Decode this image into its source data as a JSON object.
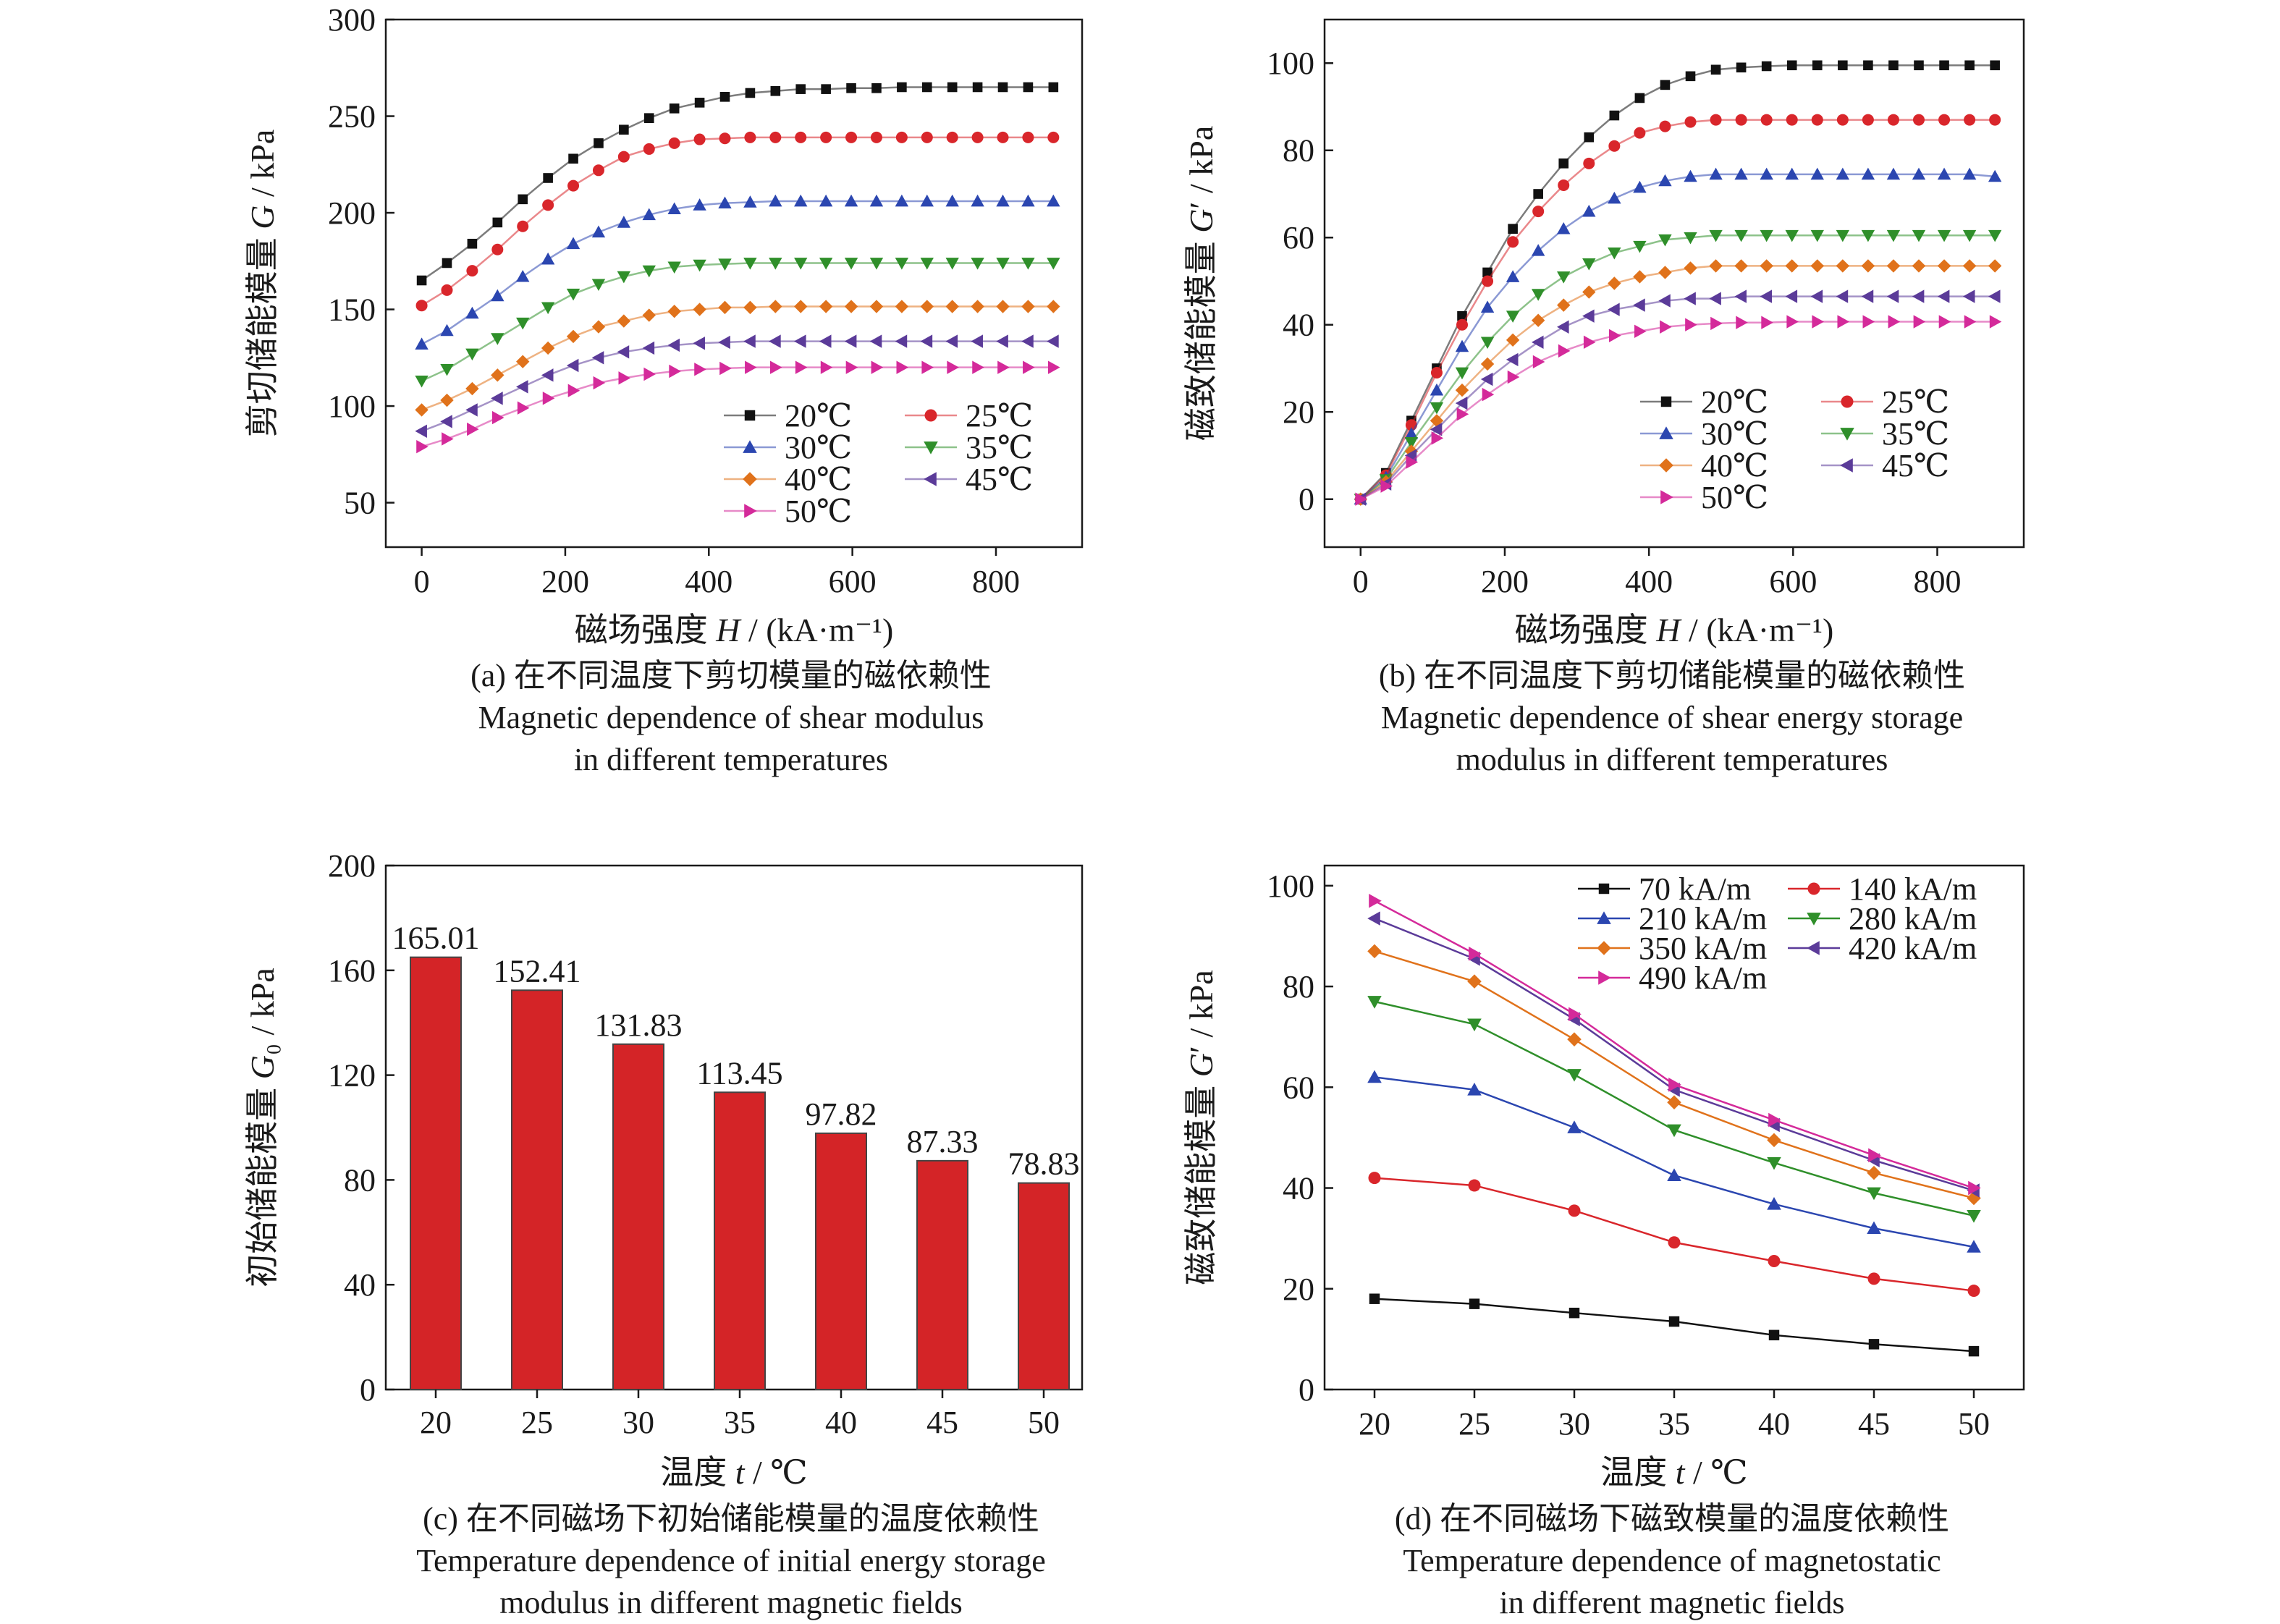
{
  "colors": {
    "20": "#111111",
    "25": "#d9262b",
    "30": "#2b46b0",
    "35": "#2f8f2a",
    "40": "#e0721b",
    "45": "#5b3b99",
    "50": "#d42a9a",
    "bar": "#d42427",
    "axis": "#1a1a1a"
  },
  "chart_data": [
    {
      "id": "a",
      "type": "line",
      "xlabel": "磁场强度 H / (kA·m⁻¹)",
      "ylabel": "剪切储能模量 G / kPa",
      "xlim": [
        -50,
        920
      ],
      "ylim": [
        27,
        300
      ],
      "xticks": [
        0,
        200,
        400,
        600,
        800
      ],
      "yticks": [
        50,
        100,
        150,
        200,
        250,
        300
      ],
      "legend_position": "lower-right",
      "legend_columns": 2,
      "x": [
        0,
        35.2,
        70.4,
        105.6,
        140.8,
        176,
        211.2,
        246.4,
        281.6,
        316.8,
        352,
        387.2,
        422.4,
        457.6,
        492.8,
        528,
        563.2,
        598.4,
        633.6,
        668.8,
        704,
        739.2,
        774.4,
        809.6,
        844.8,
        880
      ],
      "series": [
        {
          "name": "20℃",
          "marker": "square",
          "color_key": "20",
          "values": [
            165,
            174,
            184,
            195,
            207,
            218,
            228,
            236,
            243,
            249,
            254,
            257,
            260,
            262,
            263,
            264,
            264,
            264.5,
            264.5,
            265,
            265,
            265,
            265,
            265,
            265,
            265
          ]
        },
        {
          "name": "25℃",
          "marker": "circle",
          "color_key": "25",
          "values": [
            152,
            160,
            170,
            181,
            193,
            204,
            214,
            222,
            229,
            233,
            236,
            238,
            238.5,
            239,
            239,
            239,
            239,
            239,
            239,
            239,
            239,
            239,
            239,
            239,
            239,
            239
          ]
        },
        {
          "name": "30℃",
          "marker": "triangle-up",
          "color_key": "30",
          "values": [
            132,
            139,
            148,
            157,
            167,
            176,
            184,
            190,
            195,
            199,
            202,
            204,
            205,
            205.5,
            206,
            206,
            206,
            206,
            206,
            206,
            206,
            206,
            206,
            206,
            206,
            206
          ]
        },
        {
          "name": "35℃",
          "marker": "triangle-down",
          "color_key": "35",
          "values": [
            113,
            119,
            127,
            135,
            143,
            151,
            158,
            163,
            167,
            170,
            172,
            173,
            173.5,
            174,
            174,
            174,
            174,
            174,
            174,
            174,
            174,
            174,
            174,
            174,
            174,
            174
          ]
        },
        {
          "name": "40℃",
          "marker": "diamond",
          "color_key": "40",
          "values": [
            98,
            103,
            109,
            116,
            123,
            130,
            136,
            141,
            144,
            147,
            149,
            150,
            151,
            151,
            151.5,
            151.5,
            151.5,
            151.5,
            151.5,
            151.5,
            151.5,
            151.5,
            151.5,
            151.5,
            151.5,
            151.5
          ]
        },
        {
          "name": "45℃",
          "marker": "triangle-left",
          "color_key": "45",
          "values": [
            87,
            92,
            98,
            104,
            110,
            116,
            121,
            125,
            128,
            130,
            131.5,
            132.5,
            133,
            133.5,
            133.5,
            133.5,
            133.5,
            133.5,
            133.5,
            133.5,
            133.5,
            133.5,
            133.5,
            133.5,
            133.5,
            133.5
          ]
        },
        {
          "name": "50℃",
          "marker": "triangle-right",
          "color_key": "50",
          "values": [
            79,
            83,
            88,
            94,
            99,
            104,
            108,
            112,
            114.5,
            116.5,
            118,
            119,
            119.5,
            120,
            120,
            120,
            120,
            120,
            120,
            120,
            120,
            120,
            120,
            120,
            120,
            120
          ]
        }
      ]
    },
    {
      "id": "b",
      "type": "line",
      "xlabel": "磁场强度 H / (kA·m⁻¹)",
      "ylabel": "磁致储能模量 G′ / kPa",
      "xlim": [
        -50,
        920
      ],
      "ylim": [
        -11,
        110
      ],
      "xticks": [
        0,
        200,
        400,
        600,
        800
      ],
      "yticks": [
        0,
        20,
        40,
        60,
        80,
        100
      ],
      "legend_position": "lower-right",
      "legend_columns": 2,
      "x": [
        0,
        35.2,
        70.4,
        105.6,
        140.8,
        176,
        211.2,
        246.4,
        281.6,
        316.8,
        352,
        387.2,
        422.4,
        457.6,
        492.8,
        528,
        563.2,
        598.4,
        633.6,
        668.8,
        704,
        739.2,
        774.4,
        809.6,
        844.8,
        880
      ],
      "series": [
        {
          "name": "20℃",
          "marker": "square",
          "color_key": "20",
          "values": [
            0,
            6,
            18,
            30,
            42,
            52,
            62,
            70,
            77,
            83,
            88,
            92,
            95,
            97,
            98.5,
            99,
            99.3,
            99.5,
            99.5,
            99.5,
            99.5,
            99.5,
            99.5,
            99.5,
            99.5,
            99.5
          ]
        },
        {
          "name": "25℃",
          "marker": "circle",
          "color_key": "25",
          "values": [
            0,
            5.5,
            17,
            29,
            40,
            50,
            59,
            66,
            72,
            77,
            81,
            84,
            85.5,
            86.5,
            87,
            87,
            87,
            87,
            87,
            87,
            87,
            87,
            87,
            87,
            87,
            87
          ]
        },
        {
          "name": "30℃",
          "marker": "triangle-up",
          "color_key": "30",
          "values": [
            0,
            5,
            15,
            25,
            35,
            44,
            51,
            57,
            62,
            66,
            69,
            71.5,
            73,
            74,
            74.5,
            74.5,
            74.5,
            74.5,
            74.5,
            74.5,
            74.5,
            74.5,
            74.5,
            74.5,
            74.5,
            74
          ]
        },
        {
          "name": "35℃",
          "marker": "triangle-down",
          "color_key": "35",
          "values": [
            0,
            4.5,
            13,
            21,
            29,
            36,
            42,
            47,
            51,
            54,
            56.5,
            58,
            59.5,
            60,
            60.5,
            60.5,
            60.5,
            60.5,
            60.5,
            60.5,
            60.5,
            60.5,
            60.5,
            60.5,
            60.5,
            60.5
          ]
        },
        {
          "name": "40℃",
          "marker": "diamond",
          "color_key": "40",
          "values": [
            0,
            4,
            11,
            18,
            25,
            31,
            36.5,
            41,
            44.5,
            47.5,
            49.5,
            51,
            52,
            53,
            53.5,
            53.5,
            53.5,
            53.5,
            53.5,
            53.5,
            53.5,
            53.5,
            53.5,
            53.5,
            53.5,
            53.5
          ]
        },
        {
          "name": "45℃",
          "marker": "triangle-left",
          "color_key": "45",
          "values": [
            0,
            3.5,
            10,
            16,
            22,
            27.5,
            32,
            36,
            39.5,
            42,
            43.5,
            44.5,
            45.5,
            46,
            46,
            46.5,
            46.5,
            46.5,
            46.5,
            46.5,
            46.5,
            46.5,
            46.5,
            46.5,
            46.5,
            46.5
          ]
        },
        {
          "name": "50℃",
          "marker": "triangle-right",
          "color_key": "50",
          "values": [
            0,
            3,
            8.5,
            14,
            19.5,
            24,
            28,
            31.5,
            34,
            36,
            37.5,
            38.5,
            39.5,
            40,
            40.3,
            40.5,
            40.5,
            40.7,
            40.7,
            40.7,
            40.7,
            40.7,
            40.7,
            40.7,
            40.7,
            40.7
          ]
        }
      ]
    },
    {
      "id": "c",
      "type": "bar",
      "xlabel": "温度 t / ℃",
      "ylabel": "初始储能模量 G₀ / kPa",
      "ylim": [
        0,
        200
      ],
      "yticks": [
        0,
        40,
        80,
        120,
        160,
        200
      ],
      "categories": [
        "20",
        "25",
        "30",
        "35",
        "40",
        "45",
        "50"
      ],
      "values": [
        165.01,
        152.41,
        131.83,
        113.45,
        97.82,
        87.33,
        78.83
      ],
      "data_labels": [
        "165.01",
        "152.41",
        "131.83",
        "113.45",
        "97.82",
        "87.33",
        "78.83"
      ]
    },
    {
      "id": "d",
      "type": "line",
      "xlabel": "温度 t / ℃",
      "ylabel": "磁致储能模量 G′ / kPa",
      "xlim": [
        17.5,
        52.5
      ],
      "ylim": [
        0,
        104
      ],
      "xticks": [
        20,
        25,
        30,
        35,
        40,
        45,
        50
      ],
      "yticks": [
        0,
        20,
        40,
        60,
        80,
        100
      ],
      "legend_position": "top-right",
      "legend_columns": 2,
      "x": [
        20,
        25,
        30,
        35,
        40,
        45,
        50
      ],
      "series": [
        {
          "name": "70 kA/m",
          "marker": "square",
          "color_key": "20",
          "values": [
            18,
            17,
            15.2,
            13.5,
            10.8,
            9,
            7.6
          ]
        },
        {
          "name": "140 kA/m",
          "marker": "circle",
          "color_key": "25",
          "values": [
            42,
            40.5,
            35.5,
            29.2,
            25.5,
            22,
            19.6
          ]
        },
        {
          "name": "210 kA/m",
          "marker": "triangle-up",
          "color_key": "30",
          "values": [
            62,
            59.5,
            52,
            42.5,
            36.8,
            32,
            28.3
          ]
        },
        {
          "name": "280 kA/m",
          "marker": "triangle-down",
          "color_key": "35",
          "values": [
            77,
            72.5,
            62.5,
            51.5,
            45,
            39,
            34.5
          ]
        },
        {
          "name": "350 kA/m",
          "marker": "diamond",
          "color_key": "40",
          "values": [
            87,
            81,
            69.5,
            57,
            49.5,
            43,
            38
          ]
        },
        {
          "name": "420 kA/m",
          "marker": "triangle-left",
          "color_key": "45",
          "values": [
            93.5,
            85.5,
            73.5,
            59.5,
            52.5,
            45.5,
            39.5
          ]
        },
        {
          "name": "490 kA/m",
          "marker": "triangle-right",
          "color_key": "50",
          "values": [
            97,
            86.5,
            74.5,
            60.5,
            53.5,
            46.5,
            40
          ]
        }
      ]
    }
  ],
  "captions": [
    {
      "line1": "(a) 在不同温度下剪切模量的磁依赖性",
      "line2": "Magnetic dependence of shear modulus",
      "line3": "in different temperatures"
    },
    {
      "line1": "(b) 在不同温度下剪切储能模量的磁依赖性",
      "line2": "Magnetic dependence of shear energy storage",
      "line3": "modulus in different temperatures"
    },
    {
      "line1": "(c) 在不同磁场下初始储能模量的温度依赖性",
      "line2": "Temperature dependence of initial energy storage",
      "line3": "modulus in different magnetic fields"
    },
    {
      "line1": "(d) 在不同磁场下磁致模量的温度依赖性",
      "line2": "Temperature dependence of magnetostatic",
      "line3": "in different magnetic fields"
    }
  ]
}
